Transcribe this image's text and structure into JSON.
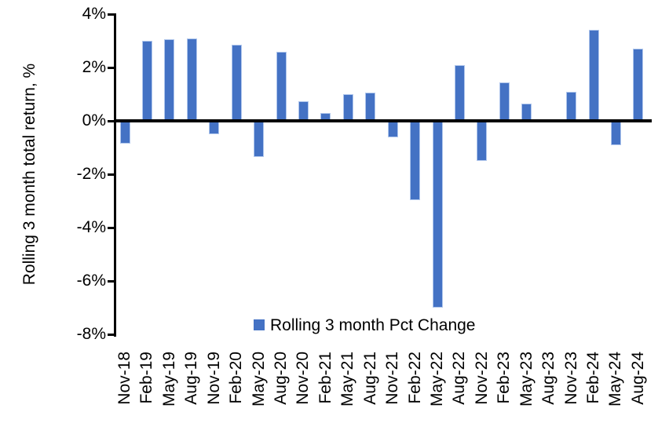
{
  "chart_data": {
    "type": "bar",
    "title": "",
    "ylabel": "Rolling 3 month total return, %",
    "xlabel": "",
    "legend": [
      "Rolling 3 month Pct Change"
    ],
    "legend_position": "inside-bottom-center",
    "grid": false,
    "background": "#FFFFFF",
    "bar_color": "#4472C4",
    "bar_edge_color": "#AFC6EC",
    "axis_color": "#000000",
    "text_color": "#000000",
    "ylim": [
      -8,
      4
    ],
    "ytick_values": [
      4,
      2,
      0,
      -2,
      -4,
      -6,
      -8
    ],
    "ytick_labels": [
      "4%",
      "2%",
      "0%",
      "-2%",
      "-4%",
      "-6%",
      "-8%"
    ],
    "categories": [
      "Nov-18",
      "Feb-19",
      "May-19",
      "Aug-19",
      "Nov-19",
      "Feb-20",
      "May-20",
      "Aug-20",
      "Nov-20",
      "Feb-21",
      "May-21",
      "Aug-21",
      "Nov-21",
      "Feb-22",
      "May-22",
      "Aug-22",
      "Nov-22",
      "Feb-23",
      "May-23",
      "Aug-23",
      "Nov-23",
      "Feb-24",
      "May-24",
      "Aug-24"
    ],
    "values": [
      -0.8,
      3.0,
      3.05,
      3.1,
      -0.45,
      2.85,
      -1.3,
      2.6,
      0.75,
      0.3,
      1.0,
      1.05,
      -0.55,
      -2.9,
      -6.95,
      2.1,
      -1.45,
      1.45,
      0.65,
      0.0,
      1.1,
      3.4,
      -0.85,
      2.7
    ],
    "value_unit": "%"
  }
}
